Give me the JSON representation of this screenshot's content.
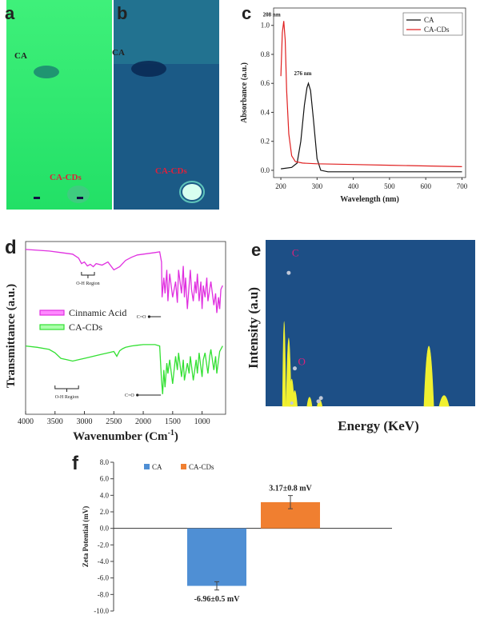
{
  "panels": {
    "a": {
      "label": "a",
      "spot_top": "CA",
      "spot_bottom": "CA-CDs",
      "bg_color": "#2ce86a"
    },
    "b": {
      "label": "b",
      "spot_top": "CA",
      "spot_bottom": "CA-CDs",
      "bg_color": "#1c5f8e"
    },
    "c": {
      "label": "c"
    },
    "d": {
      "label": "d"
    },
    "e": {
      "label": "e"
    },
    "f": {
      "label": "f"
    }
  },
  "chart_data": [
    {
      "id": "uv_vis",
      "type": "line",
      "xlabel": "Wavelength (nm)",
      "ylabel": "Absorbance (a.u.)",
      "xlim": [
        180,
        710
      ],
      "ylim": [
        -0.05,
        1.12
      ],
      "xticks": [
        200,
        300,
        400,
        500,
        600,
        700
      ],
      "yticks": [
        0.0,
        0.2,
        0.4,
        0.6,
        0.8,
        1.0
      ],
      "xtick_labels": [
        "200",
        "300",
        "400",
        "500",
        "600",
        "700"
      ],
      "ytick_labels": [
        "0.0",
        "0.2",
        "0.4",
        "0.6",
        "0.8",
        "1.0"
      ],
      "series": [
        {
          "name": "CA",
          "color": "#111111",
          "x": [
            200,
            230,
            245,
            255,
            265,
            272,
            276,
            282,
            290,
            300,
            310,
            330,
            400,
            500,
            600,
            700
          ],
          "y": [
            0.01,
            0.02,
            0.05,
            0.2,
            0.45,
            0.57,
            0.6,
            0.55,
            0.35,
            0.08,
            0.0,
            -0.01,
            -0.01,
            -0.01,
            -0.01,
            -0.01
          ]
        },
        {
          "name": "CA-CDs",
          "color": "#e02020",
          "x": [
            200,
            204,
            208,
            212,
            216,
            222,
            230,
            240,
            260,
            300,
            400,
            500,
            600,
            700
          ],
          "y": [
            0.65,
            0.95,
            1.03,
            0.9,
            0.55,
            0.25,
            0.1,
            0.06,
            0.05,
            0.045,
            0.04,
            0.035,
            0.03,
            0.025
          ]
        }
      ],
      "annotations": [
        {
          "text": "208 nm",
          "x": 208,
          "y": 1.03
        },
        {
          "text": "276 nm",
          "x": 276,
          "y": 0.6
        }
      ]
    },
    {
      "id": "ftir",
      "type": "line",
      "xlabel": "Wavenumber (Cm",
      "xlabel_sup": "-1",
      "xlabel_end": ")",
      "ylabel": "Transmittance (a.u.)",
      "xlim": [
        4000,
        600
      ],
      "xticks": [
        4000,
        3500,
        3000,
        2500,
        2000,
        1500,
        1000
      ],
      "xtick_labels": [
        "4000",
        "3500",
        "3000",
        "2500",
        "2000",
        "1500",
        "1000"
      ],
      "series": [
        {
          "name": "Cinnamic Acid",
          "color": "#e030e0",
          "x": [
            4000,
            3800,
            3600,
            3400,
            3200,
            3100,
            3050,
            3000,
            2950,
            2900,
            2850,
            2800,
            2700,
            2600,
            2500,
            2400,
            2300,
            2200,
            2100,
            2000,
            1900,
            1800,
            1720,
            1690,
            1680,
            1650,
            1630,
            1600,
            1580,
            1550,
            1500,
            1450,
            1420,
            1400,
            1350,
            1320,
            1300,
            1280,
            1250,
            1220,
            1200,
            1180,
            1150,
            1120,
            1100,
            1080,
            1050,
            1020,
            1000,
            980,
            950,
            920,
            900,
            870,
            850,
            800,
            770,
            750,
            720,
            700,
            680,
            650
          ],
          "y": [
            0.96,
            0.95,
            0.94,
            0.92,
            0.9,
            0.85,
            0.78,
            0.8,
            0.75,
            0.77,
            0.74,
            0.78,
            0.76,
            0.8,
            0.7,
            0.74,
            0.82,
            0.86,
            0.89,
            0.9,
            0.91,
            0.92,
            0.93,
            0.8,
            0.35,
            0.6,
            0.4,
            0.7,
            0.3,
            0.65,
            0.35,
            0.55,
            0.28,
            0.7,
            0.4,
            0.75,
            0.35,
            0.6,
            0.2,
            0.5,
            0.7,
            0.45,
            0.3,
            0.55,
            0.4,
            0.65,
            0.3,
            0.55,
            0.2,
            0.5,
            0.35,
            0.6,
            0.3,
            0.45,
            0.55,
            0.25,
            0.4,
            0.15,
            0.35,
            0.2,
            0.45,
            0.5
          ]
        },
        {
          "name": "CA-CDs",
          "color": "#33e033",
          "x": [
            4000,
            3800,
            3600,
            3500,
            3400,
            3300,
            3200,
            3100,
            3000,
            2900,
            2800,
            2700,
            2600,
            2500,
            2450,
            2400,
            2350,
            2300,
            2200,
            2100,
            2000,
            1900,
            1800,
            1720,
            1690,
            1670,
            1650,
            1630,
            1600,
            1580,
            1550,
            1500,
            1450,
            1420,
            1400,
            1350,
            1320,
            1300,
            1250,
            1220,
            1200,
            1150,
            1100,
            1080,
            1050,
            1000,
            980,
            950,
            900,
            870,
            850,
            800,
            770,
            750,
            720,
            700,
            650
          ],
          "y": [
            0.9,
            0.88,
            0.85,
            0.8,
            0.72,
            0.7,
            0.68,
            0.7,
            0.72,
            0.74,
            0.76,
            0.78,
            0.8,
            0.82,
            0.75,
            0.83,
            0.86,
            0.88,
            0.9,
            0.91,
            0.92,
            0.92,
            0.92,
            0.9,
            0.4,
            0.2,
            0.55,
            0.3,
            0.65,
            0.5,
            0.7,
            0.35,
            0.75,
            0.55,
            0.8,
            0.45,
            0.7,
            0.4,
            0.65,
            0.5,
            0.75,
            0.4,
            0.7,
            0.5,
            0.8,
            0.45,
            0.7,
            0.8,
            0.5,
            0.75,
            0.85,
            0.55,
            0.75,
            0.5,
            0.7,
            0.82,
            0.9
          ]
        }
      ],
      "annotations": {
        "oh_region": "O-H Region",
        "co_bond": "C=O"
      },
      "legend": [
        "Cinnamic Acid",
        "CA-CDs"
      ]
    },
    {
      "id": "edx",
      "type": "bar",
      "xlabel": "Energy  (KeV)",
      "ylabel": "Intensity (a.u)",
      "bg_color": "#1d4f86",
      "peak_color": "#f0f030",
      "peaks": [
        {
          "energy": 0.1,
          "intensity": 1.0
        },
        {
          "energy": 0.28,
          "intensity": 0.8
        },
        {
          "energy": 0.4,
          "intensity": 0.3
        },
        {
          "energy": 0.52,
          "intensity": 0.16
        },
        {
          "energy": 1.1,
          "intensity": 0.08
        },
        {
          "energy": 1.5,
          "intensity": 0.05
        },
        {
          "energy": 5.8,
          "intensity": 0.7
        },
        {
          "energy": 6.4,
          "intensity": 0.1
        }
      ],
      "xlim": [
        0,
        7.5
      ],
      "labels": [
        {
          "text": "C",
          "energy": 0.28,
          "intensity": 0.88
        },
        {
          "text": "O",
          "energy": 0.52,
          "intensity": 0.22
        }
      ]
    },
    {
      "id": "zeta",
      "type": "bar",
      "ylabel": "Zeta Potential (mV)",
      "ylim": [
        -10,
        8
      ],
      "yticks": [
        8,
        6,
        4,
        2,
        0,
        -2,
        -4,
        -6,
        -8,
        -10
      ],
      "ytick_labels": [
        "8.0",
        "6.0",
        "4.0",
        "2.0",
        "0.0",
        "-2.0",
        "-4.0",
        "-6.0",
        "-8.0",
        "-10.0"
      ],
      "categories": [
        "CA",
        "CA-CDs"
      ],
      "values": [
        -6.96,
        3.17
      ],
      "errors": [
        0.5,
        0.8
      ],
      "colors": [
        "#4f8fd4",
        "#f07f30"
      ],
      "data_labels": [
        "-6.96±0.5 mV",
        "3.17±0.8 mV"
      ],
      "legend": [
        "CA",
        "CA-CDs"
      ]
    }
  ]
}
